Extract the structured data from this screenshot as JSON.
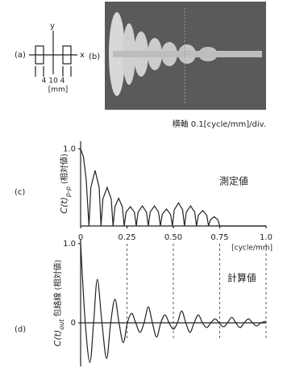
{
  "figure": {
    "panel_a": "(a)",
    "panel_b": "(b)",
    "y_axis": "y",
    "x_axis": "x",
    "dimensions": "4 10 4",
    "dimension_unit": "[mm]",
    "caption_b": "横軸 0.1[cycle/mm]/div."
  },
  "chart_data": [
    {
      "type": "line",
      "panel": "(c)",
      "interpolation": "linear",
      "color": "#222",
      "ylabel": {
        "main": "C(t)",
        "sub": "p-p",
        "unit": "(相対値)"
      },
      "annotation": "測定値",
      "x_unit": "[cycle/mm]",
      "x": [
        0,
        0.015,
        0.03,
        0.045,
        0.055,
        0.078,
        0.1,
        0.11,
        0.12,
        0.143,
        0.165,
        0.175,
        0.185,
        0.205,
        0.225,
        0.235,
        0.245,
        0.268,
        0.29,
        0.3,
        0.31,
        0.333,
        0.355,
        0.365,
        0.375,
        0.398,
        0.42,
        0.43,
        0.44,
        0.463,
        0.485,
        0.495,
        0.505,
        0.528,
        0.55,
        0.56,
        0.57,
        0.593,
        0.615,
        0.625,
        0.635,
        0.658,
        0.68,
        0.69,
        0.7,
        0.72,
        0.74,
        0.75,
        1.0
      ],
      "values": [
        1.0,
        0.9,
        0.6,
        0,
        0.5,
        0.72,
        0.5,
        0,
        0.35,
        0.5,
        0.35,
        0,
        0.25,
        0.36,
        0.25,
        0,
        0.18,
        0.25,
        0.18,
        0,
        0.18,
        0.26,
        0.18,
        0,
        0.18,
        0.26,
        0.18,
        0,
        0.15,
        0.22,
        0.15,
        0,
        0.21,
        0.3,
        0.21,
        0,
        0.18,
        0.26,
        0.18,
        0,
        0.14,
        0.2,
        0.14,
        0,
        0.08,
        0.12,
        0.08,
        0,
        0
      ],
      "xlim": [
        0,
        1.0
      ],
      "ylim": [
        0,
        1.1
      ],
      "xticks": [
        0,
        0.25,
        {
          "value": 0.5,
          "label": "0.50"
        },
        0.75,
        {
          "value": 1.0,
          "label": "1.0"
        }
      ],
      "yticks": [
        {
          "value": 1.0,
          "label": "1.0"
        }
      ]
    },
    {
      "type": "line",
      "panel": "(d)",
      "interpolation": "spline",
      "color": "#222",
      "ylabel": {
        "main": "C(t)",
        "sub": "out",
        "unit": "包絡線 (相対値)"
      },
      "annotation": "計算値",
      "x": [
        0,
        0.025,
        0.05,
        0.07,
        0.09,
        0.115,
        0.14,
        0.162,
        0.185,
        0.207,
        0.23,
        0.252,
        0.275,
        0.297,
        0.32,
        0.342,
        0.365,
        0.387,
        0.41,
        0.432,
        0.455,
        0.477,
        0.5,
        0.522,
        0.545,
        0.567,
        0.59,
        0.612,
        0.635,
        0.657,
        0.68,
        0.702,
        0.725,
        0.747,
        0.77,
        0.792,
        0.815,
        0.837,
        0.86,
        0.882,
        0.905,
        0.927,
        0.95,
        0.972,
        1.0
      ],
      "values": [
        1.0,
        0,
        -0.5,
        0,
        0.55,
        0,
        -0.45,
        0,
        0.3,
        0,
        -0.25,
        0,
        0.12,
        0,
        -0.12,
        0,
        0.2,
        0,
        -0.18,
        0,
        0.1,
        0,
        -0.08,
        0,
        0.15,
        0,
        -0.12,
        0,
        0.1,
        0,
        -0.06,
        0,
        0.05,
        0,
        -0.05,
        0,
        0.07,
        0,
        -0.06,
        0,
        0.05,
        0,
        -0.04,
        0,
        0.02
      ],
      "xlim": [
        0,
        1.0
      ],
      "ylim": [
        -0.55,
        1.05
      ],
      "yticks": [
        {
          "value": 1.0,
          "label": "1.0"
        },
        0
      ]
    }
  ]
}
